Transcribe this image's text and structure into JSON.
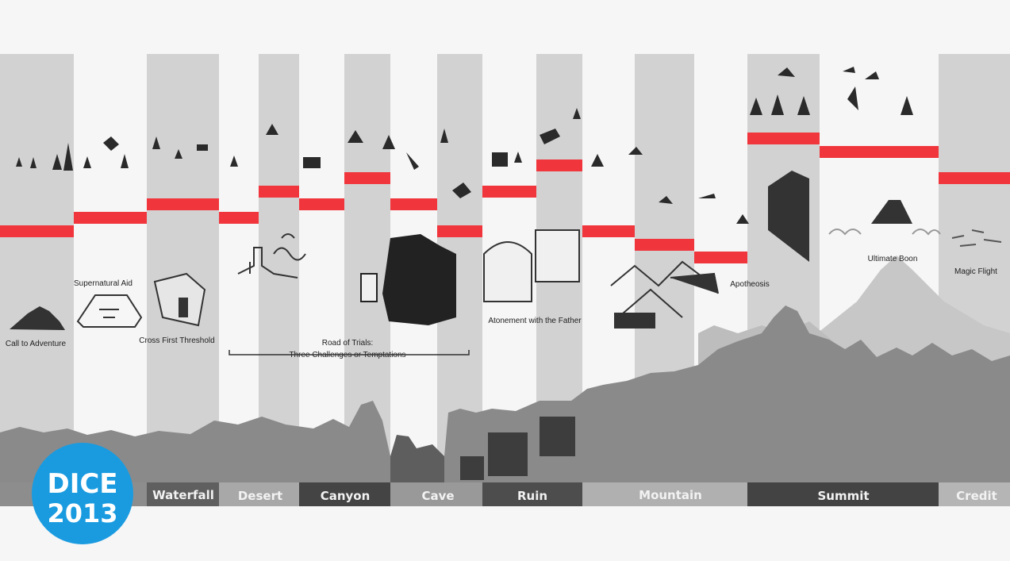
{
  "stages": [
    {
      "label": "Call to Adventure"
    },
    {
      "label": "Supernatural Aid"
    },
    {
      "label": "Cross First Threshold"
    },
    {
      "label": "Road of Trials:"
    },
    {
      "label": "Three Challenges or Temptations"
    },
    {
      "label": "Atonement with the Father"
    },
    {
      "label": "Apotheosis"
    },
    {
      "label": "Ultimate Boon"
    },
    {
      "label": "Magic Flight"
    }
  ],
  "zones": [
    {
      "label": "",
      "color": "#8d8d8d"
    },
    {
      "label": "Waterfall",
      "color": "#5f5f5f"
    },
    {
      "label": "Desert",
      "color": "#a8a8a8"
    },
    {
      "label": "Canyon",
      "color": "#444444"
    },
    {
      "label": "Cave",
      "color": "#999999"
    },
    {
      "label": "Ruin",
      "color": "#4d4d4d"
    },
    {
      "label": "Mountain",
      "color": "#b0b0b0"
    },
    {
      "label": "Summit",
      "color": "#434343"
    },
    {
      "label": "Credit",
      "color": "#b5b5b5"
    }
  ],
  "badge": {
    "line1": "DICE",
    "line2": "2013",
    "color": "#1a9be0"
  },
  "colors": {
    "marker": "#f0363c",
    "column": "#d2d2d2",
    "terrain": "#8a8a8a"
  }
}
